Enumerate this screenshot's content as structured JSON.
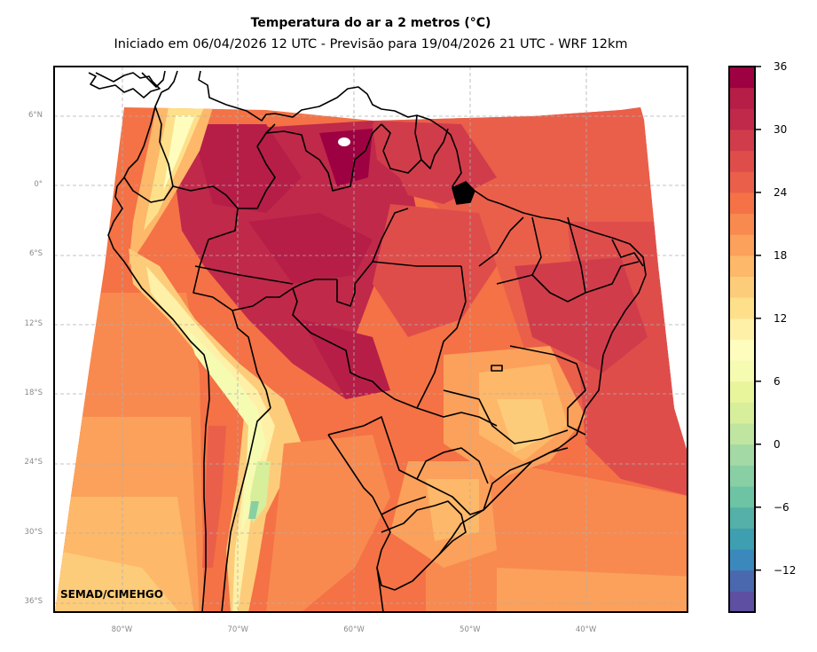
{
  "header": {
    "title": "Temperatura do ar a 2 metros (°C)",
    "subtitle": "Iniciado em 06/04/2026 12 UTC - Previsão para 19/04/2026 21 UTC - WRF 12km"
  },
  "map": {
    "credit": "SEMAD/CIMEHGO",
    "lat_ticks": [
      {
        "label": "6°N",
        "value": 6
      },
      {
        "label": "0°",
        "value": 0
      },
      {
        "label": "6°S",
        "value": -6
      },
      {
        "label": "12°S",
        "value": -12
      },
      {
        "label": "18°S",
        "value": -18
      },
      {
        "label": "24°S",
        "value": -24
      },
      {
        "label": "30°S",
        "value": -30
      },
      {
        "label": "36°S",
        "value": -36
      }
    ],
    "lon_ticks": [
      {
        "label": "80°W",
        "value": -80
      },
      {
        "label": "70°W",
        "value": -70
      },
      {
        "label": "60°W",
        "value": -60
      },
      {
        "label": "50°W",
        "value": -50
      },
      {
        "label": "40°W",
        "value": -40
      }
    ],
    "border_color": "#000000",
    "grid_color": "#b0b0b0"
  },
  "colorbar": {
    "min": -16,
    "max": 36,
    "step": 2,
    "ticks": [
      {
        "label": "36",
        "value": 36
      },
      {
        "label": "30",
        "value": 30
      },
      {
        "label": "24",
        "value": 24
      },
      {
        "label": "18",
        "value": 18
      },
      {
        "label": "12",
        "value": 12
      },
      {
        "label": "6",
        "value": 6
      },
      {
        "label": "0",
        "value": 0
      },
      {
        "label": "−6",
        "value": -6
      },
      {
        "label": "−12",
        "value": -12
      }
    ],
    "colors": [
      "#5e4fa2",
      "#4a68ae",
      "#3b88bc",
      "#3e9fb1",
      "#54b0a8",
      "#6dc4a5",
      "#89cfa4",
      "#a3d9a4",
      "#bfe5a0",
      "#d7ee9b",
      "#e8f59b",
      "#f6fbb2",
      "#fffdbd",
      "#fef0a6",
      "#fee08b",
      "#fdcc7a",
      "#fdb869",
      "#fba15b",
      "#f88a50",
      "#f47245",
      "#ea5f4a",
      "#df4d4b",
      "#d13c4b",
      "#c0294a",
      "#b61e48",
      "#9e0142"
    ]
  }
}
